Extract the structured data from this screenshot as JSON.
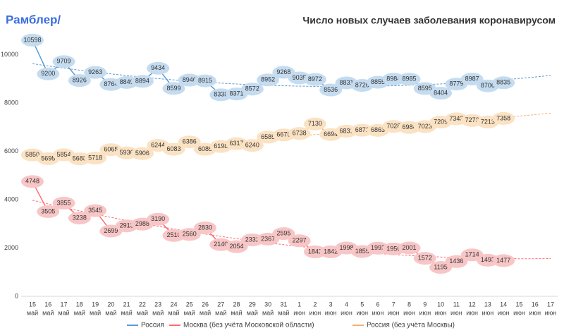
{
  "logo": "Рамблер/",
  "chart_data": {
    "type": "line",
    "title": "Число новых случаев заболевания коронавирусом",
    "categories": [
      [
        "15",
        "май"
      ],
      [
        "16",
        "май"
      ],
      [
        "17",
        "май"
      ],
      [
        "18",
        "май"
      ],
      [
        "19",
        "май"
      ],
      [
        "20",
        "май"
      ],
      [
        "21",
        "май"
      ],
      [
        "22",
        "май"
      ],
      [
        "23",
        "май"
      ],
      [
        "24",
        "май"
      ],
      [
        "25",
        "май"
      ],
      [
        "26",
        "май"
      ],
      [
        "27",
        "май"
      ],
      [
        "28",
        "май"
      ],
      [
        "29",
        "май"
      ],
      [
        "30",
        "май"
      ],
      [
        "31",
        "май"
      ],
      [
        "1",
        "июн"
      ],
      [
        "2",
        "июн"
      ],
      [
        "3",
        "июн"
      ],
      [
        "4",
        "июн"
      ],
      [
        "5",
        "июн"
      ],
      [
        "6",
        "июн"
      ],
      [
        "7",
        "июн"
      ],
      [
        "8",
        "июн"
      ],
      [
        "9",
        "июн"
      ],
      [
        "10",
        "июн"
      ],
      [
        "11",
        "июн"
      ],
      [
        "12",
        "июн"
      ],
      [
        "13",
        "июн"
      ],
      [
        "14",
        "июн"
      ],
      [
        "15",
        "июн"
      ],
      [
        "16",
        "июн"
      ],
      [
        "17",
        "июн"
      ]
    ],
    "series": [
      {
        "name": "Россия",
        "color": "#5b9bd5",
        "label_fill": "#c5dcf0",
        "values": [
          10598,
          9200,
          9709,
          8926,
          9263,
          8764,
          8849,
          8894,
          9434,
          8599,
          8946,
          8915,
          8338,
          8371,
          8572,
          8952,
          9268,
          9035,
          8972,
          8536,
          8831,
          8726,
          8855,
          8984,
          8985,
          8595,
          8404,
          8779,
          8987,
          8706,
          8835,
          null,
          null,
          null
        ]
      },
      {
        "name": "Москва (без учёта Московской области)",
        "color": "#ff6b70",
        "label_fill": "#f8c6c6",
        "values": [
          4748,
          3505,
          3855,
          3238,
          3545,
          2699,
          2913,
          2988,
          3190,
          2516,
          2560,
          2830,
          2140,
          2054,
          2332,
          2367,
          2595,
          2297,
          1842,
          1842,
          1998,
          1855,
          1992,
          1956,
          2001,
          1572,
          1195,
          1436,
          1714,
          1493,
          1477,
          null,
          null,
          null
        ]
      },
      {
        "name": "Россия (без учёта Москвы)",
        "color": "#f4b072",
        "label_fill": "#fbe2c3",
        "values": [
          5850,
          5695,
          5854,
          5688,
          5718,
          6065,
          5936,
          5906,
          6244,
          6083,
          6386,
          6085,
          6198,
          6317,
          6240,
          6585,
          6675,
          6738,
          7130,
          6694,
          6831,
          6871,
          6863,
          7028,
          6984,
          7023,
          7209,
          7343,
          7273,
          7213,
          7358,
          null,
          null,
          null
        ]
      }
    ],
    "ylim": [
      0,
      11500
    ],
    "yticks": [
      0,
      2000,
      4000,
      6000,
      8000,
      10000
    ],
    "grid": false,
    "legend": "bottom",
    "trendline": true
  }
}
